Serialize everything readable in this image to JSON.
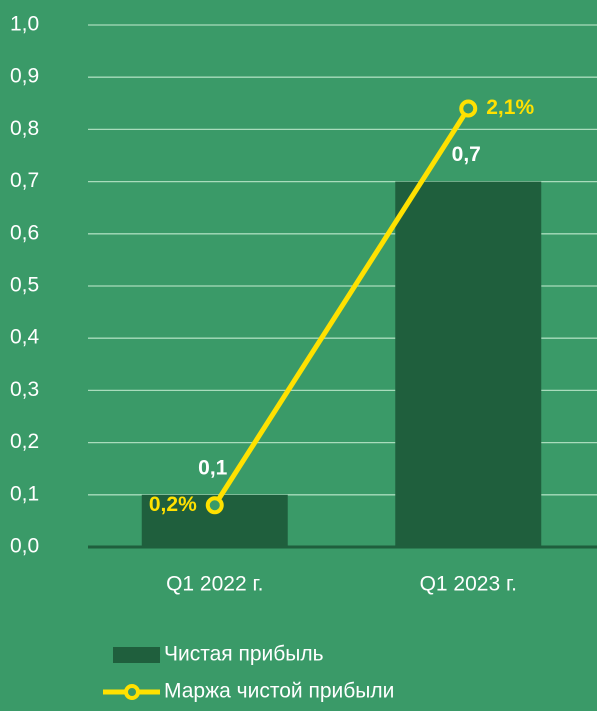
{
  "chart_data": {
    "type": "bar",
    "categories": [
      "Q1 2022 г.",
      "Q1 2023 г."
    ],
    "series": [
      {
        "name": "Чистая прибыль",
        "type": "bar",
        "color": "#1f5f3d",
        "values": [
          0.1,
          0.7
        ],
        "value_labels": [
          "0,1",
          "0,7"
        ]
      },
      {
        "name": "Маржа чистой прибыли",
        "type": "line",
        "axis": "y2",
        "color": "#ffe100",
        "values": [
          0.2,
          2.1
        ],
        "value_labels": [
          "0,2%",
          "2,1%"
        ]
      }
    ],
    "ylim": [
      0,
      1
    ],
    "yticks": [
      {
        "value": 0,
        "label": "0,0"
      },
      {
        "value": 0.1,
        "label": "0,1"
      },
      {
        "value": 0.2,
        "label": "0,2"
      },
      {
        "value": 0.3,
        "label": "0,3"
      },
      {
        "value": 0.4,
        "label": "0,4"
      },
      {
        "value": 0.5,
        "label": "0,5"
      },
      {
        "value": 0.6,
        "label": "0,6"
      },
      {
        "value": 0.7,
        "label": "0,7"
      },
      {
        "value": 0.8,
        "label": "0,8"
      },
      {
        "value": 0.9,
        "label": "0,9"
      },
      {
        "value": 1,
        "label": "1,0"
      }
    ],
    "y2lim": [
      0,
      2.5
    ],
    "grid": true
  }
}
